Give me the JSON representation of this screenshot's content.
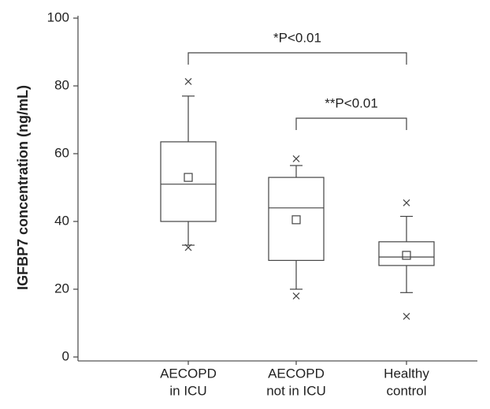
{
  "chart_data": {
    "type": "box",
    "y_label": "IGFBP7 concentration (ng/mL)",
    "categories": [
      [
        "AECOPD",
        "in ICU"
      ],
      [
        "AECOPD",
        "not in ICU"
      ],
      [
        "Healthy",
        "control"
      ]
    ],
    "boxes": [
      {
        "whisker_low": 33,
        "q1": 40,
        "median": 51,
        "q3": 63.5,
        "whisker_high": 77,
        "mean": 53,
        "outliers": [
          81.3,
          32.3
        ]
      },
      {
        "whisker_low": 20,
        "q1": 28.5,
        "median": 44,
        "q3": 53,
        "whisker_high": 56.5,
        "mean": 40.5,
        "outliers": [
          58.5,
          18
        ]
      },
      {
        "whisker_low": 19,
        "q1": 27,
        "median": 29.5,
        "q3": 34,
        "whisker_high": 41.5,
        "mean": 30,
        "outliers": [
          45.5,
          12
        ]
      }
    ],
    "comparisons": [
      {
        "from": 0,
        "to": 2,
        "label": "*P<0.01"
      },
      {
        "from": 1,
        "to": 2,
        "label": "**P<0.01"
      }
    ],
    "ylim": [
      0,
      100
    ],
    "yticks": [
      0,
      20,
      40,
      60,
      80,
      100
    ]
  }
}
